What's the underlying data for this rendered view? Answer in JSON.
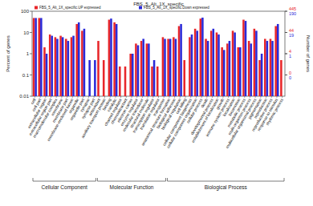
{
  "chart_data": {
    "type": "bar",
    "title": "FBS_5_Alt_1X_specific",
    "ylabel": "Percent of genes",
    "y2label": "Number of genes",
    "log": "y",
    "legend": "top-left",
    "categories": [
      "cell",
      "cell part",
      "extracellular region",
      "extracellular region part",
      "macromolecular complex",
      "membrane",
      "membrane part",
      "membrane-enclosed lumen",
      "organelle",
      "organelle part",
      "synapse",
      "synapse part",
      "antioxidant",
      "auxiliary transport protein",
      "binding",
      "catalytic",
      "channel regulator",
      "chemoattractant",
      "electron carrier",
      "enzyme regulator",
      "molecular transducer",
      "structural molecule",
      "transcription regulator",
      "translation regulator",
      "transporter",
      "anatomical structure formation",
      "biological adhesion",
      "biological regulation",
      "cell killing",
      "cellular component biogenesis",
      "cellular component organization",
      "cellular process",
      "death",
      "developmental process",
      "establishment of localization",
      "growth",
      "immune system process",
      "localization",
      "locomotion",
      "metabolic process",
      "multi-organism process",
      "multicellular organismal process",
      "pigmentation",
      "reproduction",
      "reproductive process",
      "response to stimulus",
      "rhythmic process"
    ],
    "series": [
      {
        "name": "FBS_5_Alt_1X_specific.UP expressed",
        "color": "#e8262a",
        "values": [
          48,
          48,
          2,
          8,
          6,
          7,
          5,
          6,
          25,
          12,
          null,
          null,
          4,
          0.5,
          40,
          30,
          0.25,
          0.25,
          1,
          3,
          4,
          3,
          0.25,
          0.25,
          6,
          5,
          6,
          20,
          0.5,
          6,
          15,
          45,
          5,
          12,
          10,
          2,
          3,
          12,
          2,
          40,
          4,
          15,
          0.5,
          5,
          5,
          20,
          0.5
        ]
      },
      {
        "name": "FBS_5_Alt_1X_specific.Down expressed",
        "color": "#2a2ad8",
        "values": [
          48,
          48,
          1,
          7,
          5,
          6,
          4,
          7,
          30,
          15,
          0.5,
          0.5,
          null,
          null,
          45,
          25,
          null,
          null,
          1,
          2.5,
          5,
          3,
          0.5,
          null,
          5,
          5,
          5,
          25,
          null,
          8,
          12,
          50,
          4,
          15,
          8,
          1.5,
          4,
          10,
          2,
          35,
          3,
          12,
          1,
          4,
          4,
          25,
          null
        ]
      }
    ],
    "groups": [
      {
        "label": "Cellular Component",
        "start": 0,
        "end": 11
      },
      {
        "label": "Molecular Function",
        "start": 12,
        "end": 24
      },
      {
        "label": "Biological Process",
        "start": 25,
        "end": 46
      }
    ],
    "ylim": [
      0.01,
      100
    ],
    "yticks": [
      0.01,
      0.1,
      1,
      10,
      100
    ],
    "y2ticks_up": [
      {
        "value": 100,
        "label": "445"
      },
      {
        "value": 10,
        "label": "44"
      },
      {
        "value": 1,
        "label": "4"
      },
      {
        "value": 0.1,
        "label": "0"
      }
    ],
    "y2ticks_down": [
      {
        "value": 100,
        "label": "190"
      },
      {
        "value": 10,
        "label": "19"
      },
      {
        "value": 1,
        "label": "1"
      },
      {
        "value": 0.1,
        "label": "0"
      }
    ]
  }
}
